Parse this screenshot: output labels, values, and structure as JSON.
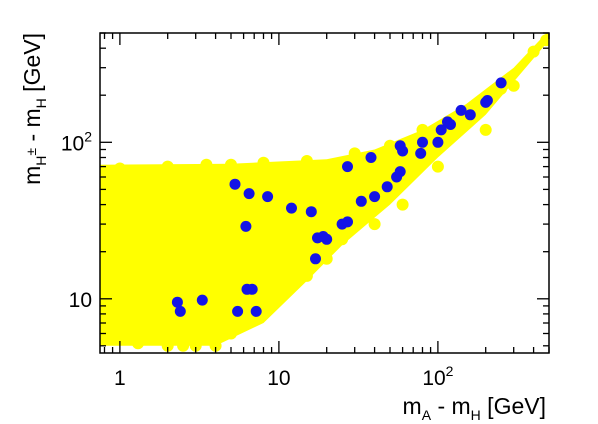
{
  "chart_data": {
    "type": "scatter",
    "title": "",
    "xlabel": {
      "base": "m",
      "sub": "A",
      "rest": " - m",
      "sub2": "H",
      "unit": "  [GeV]"
    },
    "ylabel": {
      "base": "m",
      "sub": "H",
      "sup": "±",
      "rest": " - m",
      "sub2": "H",
      "unit": "  [GeV]"
    },
    "xscale": "log",
    "yscale": "log",
    "xlim": [
      0.75,
      500
    ],
    "ylim": [
      4.5,
      500
    ],
    "x_ticks": [
      {
        "value": 1,
        "base": "1",
        "exp": ""
      },
      {
        "value": 10,
        "base": "10",
        "exp": ""
      },
      {
        "value": 100,
        "base": "10",
        "exp": "2"
      }
    ],
    "y_ticks": [
      {
        "value": 10,
        "base": "10",
        "exp": ""
      },
      {
        "value": 100,
        "base": "10",
        "exp": "2"
      }
    ],
    "colors": {
      "yellow": "#ffff00",
      "blue": "#1414e6",
      "axis": "#000000"
    },
    "series": [
      {
        "color": "#ffff00",
        "points": [
          [
            0.8,
            62
          ],
          [
            0.85,
            12
          ],
          [
            0.85,
            8
          ],
          [
            0.85,
            6
          ],
          [
            0.9,
            40
          ],
          [
            0.9,
            30
          ],
          [
            0.95,
            20
          ],
          [
            0.95,
            15
          ],
          [
            0.95,
            11
          ],
          [
            1.0,
            68
          ],
          [
            1.0,
            9
          ],
          [
            1.0,
            5.5
          ],
          [
            1.1,
            55
          ],
          [
            1.1,
            25
          ],
          [
            1.1,
            7
          ],
          [
            1.2,
            35
          ],
          [
            1.2,
            14
          ],
          [
            1.3,
            5.2
          ],
          [
            1.3,
            45
          ],
          [
            1.4,
            8
          ],
          [
            1.5,
            60
          ],
          [
            1.5,
            18
          ],
          [
            1.6,
            6
          ],
          [
            1.8,
            10
          ],
          [
            2.0,
            5.0
          ],
          [
            2.0,
            70
          ],
          [
            2.2,
            28
          ],
          [
            2.5,
            5.0
          ],
          [
            2.8,
            12
          ],
          [
            3.0,
            5.0
          ],
          [
            3.5,
            72
          ],
          [
            3.5,
            7
          ],
          [
            4.0,
            5.0
          ],
          [
            5.0,
            6
          ],
          [
            5.0,
            72
          ],
          [
            7.0,
            8
          ],
          [
            8.0,
            74
          ],
          [
            10,
            10
          ],
          [
            15,
            76
          ],
          [
            15,
            14
          ],
          [
            20,
            18
          ],
          [
            25,
            24
          ],
          [
            30,
            85
          ],
          [
            40,
            30
          ],
          [
            50,
            95
          ],
          [
            60,
            40
          ],
          [
            80,
            120
          ],
          [
            100,
            70
          ],
          [
            150,
            150
          ],
          [
            200,
            120
          ],
          [
            250,
            220
          ],
          [
            300,
            230
          ],
          [
            400,
            380
          ],
          [
            480,
            450
          ],
          [
            2.0,
            40
          ],
          [
            3.0,
            20
          ],
          [
            4.0,
            50
          ],
          [
            6.0,
            30
          ],
          [
            8.0,
            15
          ],
          [
            12,
            45
          ],
          [
            3.0,
            9
          ],
          [
            2.5,
            60
          ],
          [
            1.5,
            40
          ],
          [
            6.0,
            60
          ],
          [
            12,
            25
          ]
        ]
      },
      {
        "color": "#1414e6",
        "points": [
          [
            2.3,
            9.5
          ],
          [
            2.4,
            8.3
          ],
          [
            3.3,
            9.8
          ],
          [
            5.3,
            54
          ],
          [
            5.5,
            8.3
          ],
          [
            6.2,
            29
          ],
          [
            6.3,
            11.5
          ],
          [
            6.8,
            11.5
          ],
          [
            7.2,
            8.3
          ],
          [
            6.5,
            47
          ],
          [
            8.5,
            45
          ],
          [
            12,
            38
          ],
          [
            16,
            36
          ],
          [
            17,
            18
          ],
          [
            17.5,
            24.5
          ],
          [
            19,
            25
          ],
          [
            20,
            24
          ],
          [
            25,
            30
          ],
          [
            27,
            31
          ],
          [
            27,
            70
          ],
          [
            33,
            42
          ],
          [
            38,
            80
          ],
          [
            40,
            45
          ],
          [
            48,
            52
          ],
          [
            55,
            60
          ],
          [
            58,
            65
          ],
          [
            58,
            95
          ],
          [
            60,
            88
          ],
          [
            78,
            85
          ],
          [
            80,
            100
          ],
          [
            100,
            100
          ],
          [
            105,
            120
          ],
          [
            115,
            135
          ],
          [
            120,
            130
          ],
          [
            140,
            160
          ],
          [
            160,
            150
          ],
          [
            200,
            180
          ],
          [
            205,
            185
          ],
          [
            250,
            240
          ]
        ]
      }
    ]
  }
}
